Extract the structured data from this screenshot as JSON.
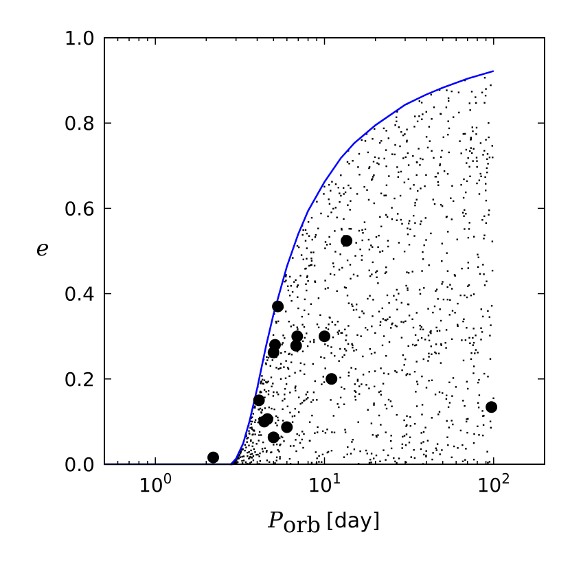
{
  "chart_data": {
    "type": "scatter",
    "title": "",
    "xlabel": {
      "symbol": "P",
      "subscript": "orb",
      "unit": "[day]"
    },
    "ylabel": "e",
    "x_scale": "log",
    "xlim": [
      0.5,
      200
    ],
    "ylim": [
      0.0,
      1.0
    ],
    "x_ticks": [
      {
        "value": 1,
        "base": "10",
        "exp": "0"
      },
      {
        "value": 10,
        "base": "10",
        "exp": "1"
      },
      {
        "value": 100,
        "base": "10",
        "exp": "2"
      }
    ],
    "y_ticks": [
      "0.0",
      "0.2",
      "0.4",
      "0.6",
      "0.8",
      "1.0"
    ],
    "grid": false,
    "colors": {
      "curve": "#0000ff",
      "points": "#000000",
      "frame": "#000000"
    },
    "series": [
      {
        "kind": "line",
        "x": [
          2.8,
          3.0,
          3.3,
          3.6,
          4.0,
          4.5,
          5.0,
          6.0,
          7.0,
          8.0,
          10.0,
          12.5,
          15.0,
          20.0,
          30.0,
          40.0,
          50.0,
          70.0,
          100.0
        ],
        "y": [
          0.0,
          0.013,
          0.048,
          0.1,
          0.178,
          0.275,
          0.352,
          0.464,
          0.54,
          0.594,
          0.662,
          0.718,
          0.753,
          0.795,
          0.843,
          0.867,
          0.883,
          0.904,
          0.922
        ]
      },
      {
        "kind": "scatter-large",
        "x": [
          2.2,
          4.1,
          4.4,
          4.6,
          5.0,
          5.0,
          5.1,
          5.3,
          6.0,
          6.8,
          6.9,
          10.0,
          11.0,
          13.5,
          97.0
        ],
        "y": [
          0.016,
          0.15,
          0.1,
          0.106,
          0.063,
          0.262,
          0.28,
          0.37,
          0.087,
          0.278,
          0.3,
          0.3,
          0.2,
          0.524,
          0.134
        ]
      },
      {
        "kind": "scatter-small",
        "count": 1200,
        "distribution": "uniform in e below the blue curve, log-uniform in P from 2.8 to 100 days"
      }
    ]
  }
}
